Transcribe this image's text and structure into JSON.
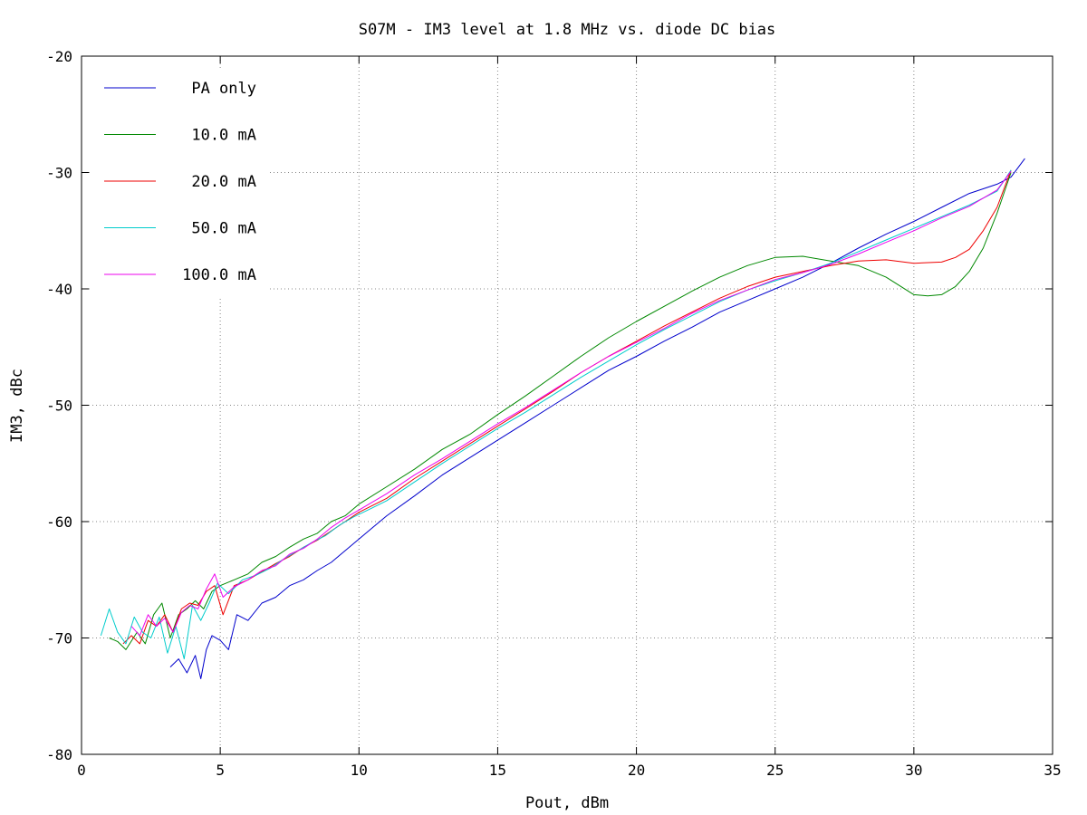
{
  "chart_data": {
    "type": "line",
    "title": "S07M - IM3 level at 1.8 MHz vs. diode DC bias",
    "xlabel": "Pout, dBm",
    "ylabel": "IM3, dBc",
    "xlim": [
      0,
      35
    ],
    "ylim": [
      -80,
      -20
    ],
    "xticks": [
      "0",
      "5",
      "10",
      "15",
      "20",
      "25",
      "30",
      "35"
    ],
    "yticks": [
      "-80",
      "-70",
      "-60",
      "-50",
      "-40",
      "-30",
      "-20"
    ],
    "grid": true,
    "legend_position": "top-left",
    "series": [
      {
        "name": "PA only",
        "color": "#0000cc",
        "x": [
          3.2,
          3.5,
          3.8,
          4.1,
          4.3,
          4.5,
          4.7,
          5.0,
          5.3,
          5.6,
          6.0,
          6.5,
          7.0,
          7.5,
          8.0,
          8.5,
          9.0,
          9.5,
          10.0,
          10.5,
          11.0,
          12.0,
          13.0,
          14.0,
          15.0,
          16.0,
          17.0,
          18.0,
          19.0,
          20.0,
          21.0,
          22.0,
          23.0,
          24.0,
          25.0,
          26.0,
          27.0,
          28.0,
          29.0,
          30.0,
          31.0,
          32.0,
          33.0,
          33.5,
          34.0
        ],
        "y": [
          -72.5,
          -71.8,
          -73.0,
          -71.5,
          -73.5,
          -71.0,
          -69.8,
          -70.2,
          -71.0,
          -68.0,
          -68.5,
          -67.0,
          -66.5,
          -65.5,
          -65.0,
          -64.2,
          -63.5,
          -62.5,
          -61.5,
          -60.5,
          -59.5,
          -57.8,
          -56.0,
          -54.5,
          -53.0,
          -51.5,
          -50.0,
          -48.5,
          -47.0,
          -45.8,
          -44.5,
          -43.3,
          -42.0,
          -41.0,
          -40.0,
          -39.0,
          -37.8,
          -36.5,
          -35.3,
          -34.2,
          -33.0,
          -31.8,
          -31.0,
          -30.4,
          -28.8
        ]
      },
      {
        "name": "10.0 mA",
        "color": "#008800",
        "x": [
          1.0,
          1.3,
          1.6,
          2.0,
          2.3,
          2.6,
          2.9,
          3.2,
          3.5,
          3.8,
          4.1,
          4.4,
          4.7,
          5.0,
          5.5,
          6.0,
          6.5,
          7.0,
          7.5,
          8.0,
          8.5,
          9.0,
          9.5,
          10.0,
          11.0,
          12.0,
          13.0,
          14.0,
          15.0,
          16.0,
          17.0,
          18.0,
          19.0,
          20.0,
          21.0,
          22.0,
          23.0,
          24.0,
          25.0,
          26.0,
          27.0,
          28.0,
          29.0,
          30.0,
          30.5,
          31.0,
          31.5,
          32.0,
          32.5,
          33.0,
          33.5
        ],
        "y": [
          -70.0,
          -70.3,
          -71.0,
          -69.5,
          -70.5,
          -68.0,
          -67.0,
          -70.0,
          -68.0,
          -67.5,
          -66.8,
          -67.5,
          -66.0,
          -65.5,
          -65.0,
          -64.5,
          -63.5,
          -63.0,
          -62.2,
          -61.5,
          -61.0,
          -60.0,
          -59.5,
          -58.5,
          -57.0,
          -55.5,
          -53.8,
          -52.5,
          -50.8,
          -49.2,
          -47.5,
          -45.8,
          -44.2,
          -42.8,
          -41.5,
          -40.2,
          -39.0,
          -38.0,
          -37.3,
          -37.2,
          -37.6,
          -38.0,
          -39.0,
          -40.5,
          -40.6,
          -40.5,
          -39.8,
          -38.5,
          -36.5,
          -33.5,
          -30.0
        ]
      },
      {
        "name": "20.0 mA",
        "color": "#ee0000",
        "x": [
          1.5,
          1.8,
          2.1,
          2.4,
          2.7,
          3.0,
          3.3,
          3.6,
          3.9,
          4.2,
          4.5,
          4.8,
          5.1,
          5.5,
          6.0,
          6.5,
          7.0,
          7.5,
          8.0,
          8.5,
          9.0,
          9.5,
          10.0,
          11.0,
          12.0,
          13.0,
          14.0,
          15.0,
          16.0,
          17.0,
          18.0,
          19.0,
          20.0,
          21.0,
          22.0,
          23.0,
          24.0,
          25.0,
          26.0,
          27.0,
          28.0,
          29.0,
          30.0,
          31.0,
          31.5,
          32.0,
          32.5,
          33.0,
          33.5
        ],
        "y": [
          -70.5,
          -69.8,
          -70.5,
          -68.5,
          -69.0,
          -68.0,
          -69.5,
          -67.5,
          -67.0,
          -67.2,
          -66.0,
          -65.5,
          -68.0,
          -65.5,
          -65.0,
          -64.3,
          -63.6,
          -63.0,
          -62.2,
          -61.6,
          -60.8,
          -60.0,
          -59.2,
          -58.0,
          -56.3,
          -54.8,
          -53.3,
          -51.8,
          -50.3,
          -48.8,
          -47.2,
          -45.8,
          -44.5,
          -43.2,
          -42.0,
          -40.8,
          -39.8,
          -39.0,
          -38.5,
          -38.0,
          -37.6,
          -37.5,
          -37.8,
          -37.7,
          -37.3,
          -36.6,
          -35.0,
          -33.0,
          -29.8
        ]
      },
      {
        "name": "50.0 mA",
        "color": "#00cccc",
        "x": [
          0.7,
          1.0,
          1.3,
          1.6,
          1.9,
          2.2,
          2.5,
          2.8,
          3.1,
          3.4,
          3.7,
          4.0,
          4.3,
          4.6,
          4.9,
          5.3,
          5.8,
          6.3,
          6.8,
          7.3,
          7.8,
          8.3,
          8.8,
          9.3,
          9.8,
          10.5,
          11.0,
          12.0,
          13.0,
          14.0,
          15.0,
          16.0,
          17.0,
          18.0,
          19.0,
          20.0,
          21.0,
          22.0,
          23.0,
          24.0,
          25.0,
          26.0,
          27.0,
          28.0,
          29.0,
          30.0,
          31.0,
          32.0,
          33.0,
          33.5
        ],
        "y": [
          -69.8,
          -67.5,
          -69.5,
          -70.5,
          -68.2,
          -69.5,
          -70.0,
          -68.2,
          -71.3,
          -69.0,
          -71.8,
          -67.2,
          -68.5,
          -67.0,
          -65.3,
          -66.2,
          -65.0,
          -64.6,
          -64.0,
          -63.2,
          -62.5,
          -61.8,
          -61.2,
          -60.3,
          -59.6,
          -58.8,
          -58.2,
          -56.6,
          -55.0,
          -53.5,
          -52.0,
          -50.6,
          -49.1,
          -47.6,
          -46.2,
          -44.8,
          -43.5,
          -42.3,
          -41.1,
          -40.1,
          -39.3,
          -38.6,
          -37.8,
          -36.8,
          -35.8,
          -34.8,
          -33.8,
          -32.8,
          -31.6,
          -29.8
        ]
      },
      {
        "name": "100.0 mA",
        "color": "#ee00ee",
        "x": [
          1.8,
          2.1,
          2.4,
          2.7,
          3.0,
          3.3,
          3.6,
          3.9,
          4.2,
          4.5,
          4.8,
          5.1,
          5.5,
          6.0,
          6.5,
          7.0,
          7.5,
          8.0,
          8.5,
          9.0,
          9.5,
          10.0,
          11.0,
          12.0,
          13.0,
          14.0,
          15.0,
          16.0,
          17.0,
          18.0,
          19.0,
          20.0,
          21.0,
          22.0,
          23.0,
          24.0,
          25.0,
          26.0,
          27.0,
          28.0,
          29.0,
          30.0,
          31.0,
          32.0,
          33.0,
          33.5
        ],
        "y": [
          -69.0,
          -69.8,
          -68.0,
          -69.0,
          -68.3,
          -69.5,
          -67.8,
          -67.2,
          -67.5,
          -65.8,
          -64.5,
          -66.5,
          -65.6,
          -65.0,
          -64.2,
          -63.8,
          -62.8,
          -62.3,
          -61.5,
          -60.5,
          -59.7,
          -59.0,
          -57.6,
          -56.0,
          -54.6,
          -53.1,
          -51.6,
          -50.2,
          -48.7,
          -47.2,
          -45.8,
          -44.6,
          -43.4,
          -42.1,
          -41.0,
          -40.1,
          -39.2,
          -38.6,
          -37.9,
          -37.0,
          -36.0,
          -35.0,
          -33.9,
          -32.9,
          -31.5,
          -29.9
        ]
      }
    ]
  }
}
